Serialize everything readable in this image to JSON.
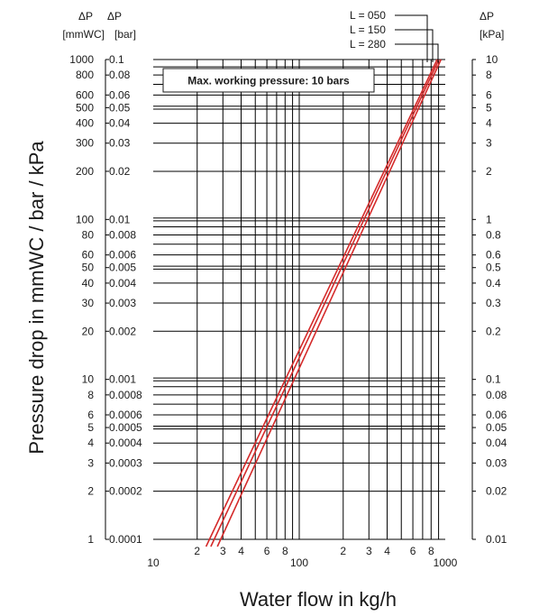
{
  "chart_data": {
    "type": "line",
    "xlabel": "Water flow in kg/h",
    "ylabel": "Pressure drop in mmWC / bar / kPa",
    "x_scale": "log",
    "y_scale": "log",
    "xlim": [
      10,
      1000
    ],
    "ylim": [
      1,
      1000
    ],
    "grid": true,
    "x_ticks": [
      {
        "v": 10,
        "t": "10",
        "major": true
      },
      {
        "v": 20,
        "t": "2"
      },
      {
        "v": 30,
        "t": "3"
      },
      {
        "v": 40,
        "t": "4"
      },
      {
        "v": 60,
        "t": "6"
      },
      {
        "v": 80,
        "t": "8"
      },
      {
        "v": 100,
        "t": "100",
        "major": true
      },
      {
        "v": 200,
        "t": "2"
      },
      {
        "v": 300,
        "t": "3"
      },
      {
        "v": 400,
        "t": "4"
      },
      {
        "v": 600,
        "t": "6"
      },
      {
        "v": 800,
        "t": "8"
      },
      {
        "v": 1000,
        "t": "1000",
        "major": true
      }
    ],
    "left_axes": [
      {
        "header": [
          "ΔP",
          "[mmWC]"
        ],
        "ticks": [
          {
            "v": 1000,
            "t": "1000"
          },
          {
            "v": 800,
            "t": "800"
          },
          {
            "v": 600,
            "t": "600"
          },
          {
            "v": 500,
            "t": "500"
          },
          {
            "v": 400,
            "t": "400"
          },
          {
            "v": 300,
            "t": "300"
          },
          {
            "v": 200,
            "t": "200"
          },
          {
            "v": 100,
            "t": "100"
          },
          {
            "v": 80,
            "t": "80"
          },
          {
            "v": 60,
            "t": "60"
          },
          {
            "v": 50,
            "t": "50"
          },
          {
            "v": 40,
            "t": "40"
          },
          {
            "v": 30,
            "t": "30"
          },
          {
            "v": 20,
            "t": "20"
          },
          {
            "v": 10,
            "t": "10"
          },
          {
            "v": 8,
            "t": "8"
          },
          {
            "v": 6,
            "t": "6"
          },
          {
            "v": 5,
            "t": "5"
          },
          {
            "v": 4,
            "t": "4"
          },
          {
            "v": 3,
            "t": "3"
          },
          {
            "v": 2,
            "t": "2"
          },
          {
            "v": 1,
            "t": "1"
          }
        ]
      },
      {
        "header": [
          "ΔP",
          "[bar]"
        ],
        "ticks": [
          {
            "v": 1000,
            "t": "0.1"
          },
          {
            "v": 800,
            "t": "0.08"
          },
          {
            "v": 600,
            "t": "0.06"
          },
          {
            "v": 500,
            "t": "0.05"
          },
          {
            "v": 400,
            "t": "0.04"
          },
          {
            "v": 300,
            "t": "0.03"
          },
          {
            "v": 200,
            "t": "0.02"
          },
          {
            "v": 100,
            "t": "0.01"
          },
          {
            "v": 80,
            "t": "0.008"
          },
          {
            "v": 60,
            "t": "0.006"
          },
          {
            "v": 50,
            "t": "0.005"
          },
          {
            "v": 40,
            "t": "0.004"
          },
          {
            "v": 30,
            "t": "0.003"
          },
          {
            "v": 20,
            "t": "0.002"
          },
          {
            "v": 10,
            "t": "0.001"
          },
          {
            "v": 8,
            "t": "0.0008"
          },
          {
            "v": 6,
            "t": "0.0006"
          },
          {
            "v": 5,
            "t": "0.0005"
          },
          {
            "v": 4,
            "t": "0.0004"
          },
          {
            "v": 3,
            "t": "0.0003"
          },
          {
            "v": 2,
            "t": "0.0002"
          },
          {
            "v": 1,
            "t": "0.0001"
          }
        ]
      }
    ],
    "right_axis": {
      "header": [
        "ΔP",
        "[kPa]"
      ],
      "ticks": [
        {
          "v": 1000,
          "t": "10"
        },
        {
          "v": 800,
          "t": "8"
        },
        {
          "v": 600,
          "t": "6"
        },
        {
          "v": 500,
          "t": "5"
        },
        {
          "v": 400,
          "t": "4"
        },
        {
          "v": 300,
          "t": "3"
        },
        {
          "v": 200,
          "t": "2"
        },
        {
          "v": 100,
          "t": "1"
        },
        {
          "v": 80,
          "t": "0.8"
        },
        {
          "v": 60,
          "t": "0.6"
        },
        {
          "v": 50,
          "t": "0.5"
        },
        {
          "v": 40,
          "t": "0.4"
        },
        {
          "v": 30,
          "t": "0.3"
        },
        {
          "v": 20,
          "t": "0.2"
        },
        {
          "v": 10,
          "t": "0.1"
        },
        {
          "v": 8,
          "t": "0.08"
        },
        {
          "v": 6,
          "t": "0.06"
        },
        {
          "v": 5,
          "t": "0.05"
        },
        {
          "v": 4,
          "t": "0.04"
        },
        {
          "v": 3,
          "t": "0.03"
        },
        {
          "v": 2,
          "t": "0.02"
        },
        {
          "v": 1,
          "t": "0.01"
        }
      ]
    },
    "annotation": "Max. working pressure: 10 bars",
    "line_color": "#d42a2a",
    "series": [
      {
        "name": "L = 050",
        "points": [
          [
            23,
            1
          ],
          [
            880,
            1000
          ]
        ]
      },
      {
        "name": "L = 150",
        "points": [
          [
            24.8,
            1
          ],
          [
            905,
            1000
          ]
        ]
      },
      {
        "name": "L = 280",
        "points": [
          [
            27.5,
            1
          ],
          [
            935,
            1000
          ]
        ]
      }
    ]
  }
}
